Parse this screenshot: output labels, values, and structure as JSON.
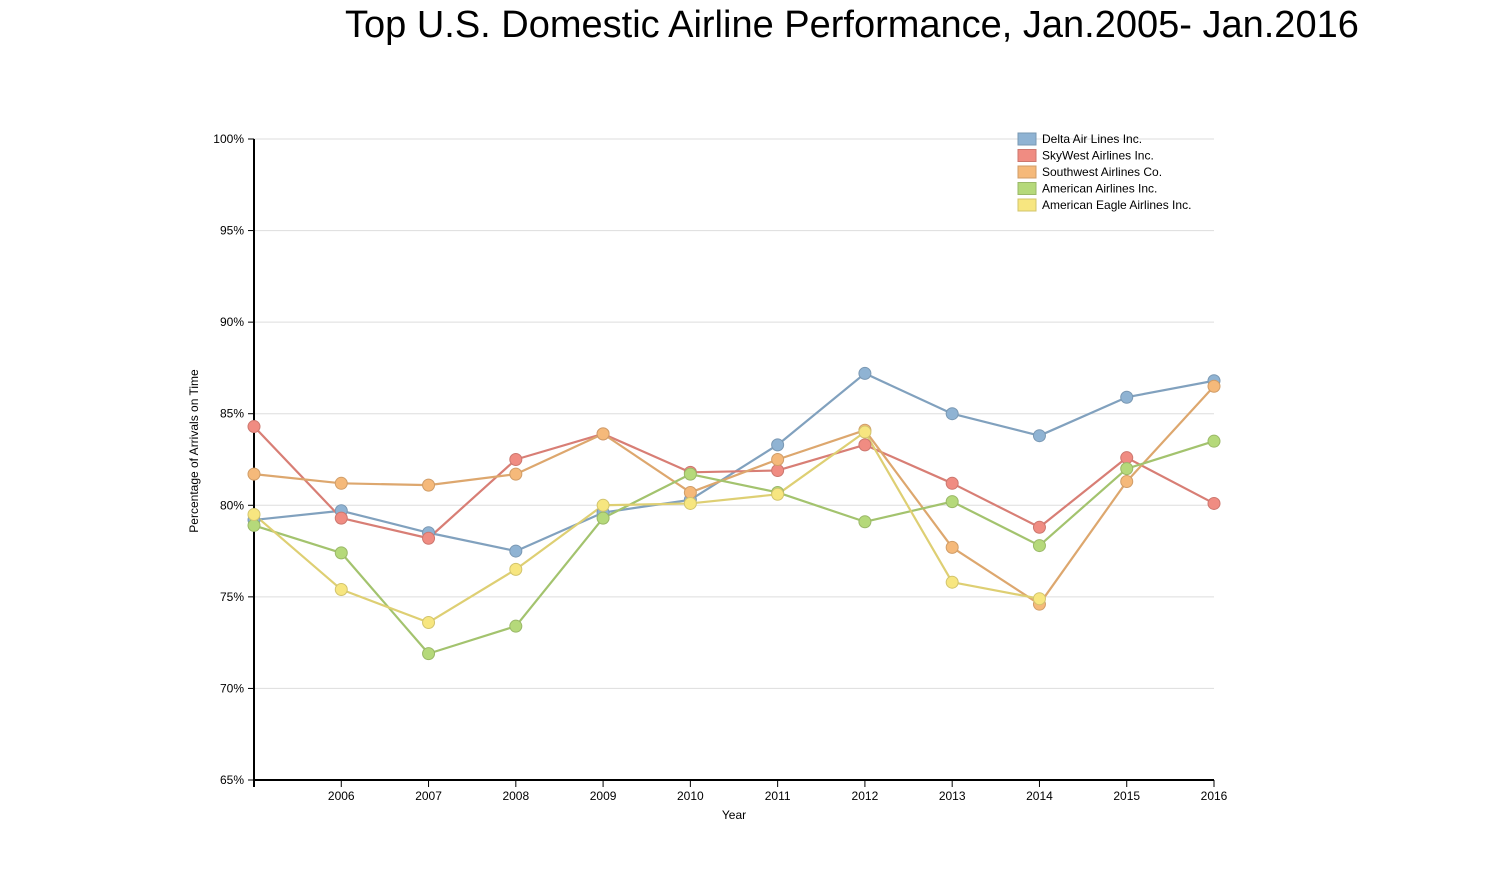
{
  "chart_data": {
    "type": "line",
    "title": "Top U.S. Domestic Airline Performance, Jan.2005- Jan.2016",
    "xlabel": "Year",
    "ylabel": "Percentage of Arrivals on Time",
    "x": [
      2005,
      2006,
      2007,
      2008,
      2009,
      2010,
      2011,
      2012,
      2013,
      2014,
      2015,
      2016
    ],
    "x_tick_labels": [
      "2006",
      "2007",
      "2008",
      "2009",
      "2010",
      "2011",
      "2012",
      "2013",
      "2014",
      "2015",
      "2016"
    ],
    "x_ticks": [
      2006,
      2007,
      2008,
      2009,
      2010,
      2011,
      2012,
      2013,
      2014,
      2015,
      2016
    ],
    "ylim": [
      0.65,
      1.0
    ],
    "y_ticks": [
      0.65,
      0.7,
      0.75,
      0.8,
      0.85,
      0.9,
      0.95,
      1.0
    ],
    "y_tick_labels": [
      "65%",
      "70%",
      "75%",
      "80%",
      "85%",
      "90%",
      "95%",
      "100%"
    ],
    "grid": "horizontal",
    "legend_position": "top-right",
    "series": [
      {
        "name": "Delta Air Lines Inc.",
        "color": "#8fb3d3",
        "values": [
          0.792,
          0.797,
          0.785,
          0.775,
          0.796,
          0.803,
          0.833,
          0.872,
          0.85,
          0.838,
          0.859,
          0.868
        ]
      },
      {
        "name": "SkyWest Airlines Inc.",
        "color": "#f08c82",
        "values": [
          0.843,
          0.793,
          0.782,
          0.825,
          0.839,
          0.818,
          0.819,
          0.833,
          0.812,
          0.788,
          0.826,
          0.801
        ]
      },
      {
        "name": "Southwest Airlines Co.",
        "color": "#f5b97a",
        "values": [
          0.817,
          0.812,
          0.811,
          0.817,
          0.839,
          0.807,
          0.825,
          0.841,
          0.777,
          0.746,
          0.813,
          0.865
        ]
      },
      {
        "name": "American Airlines Inc.",
        "color": "#b5d97a",
        "values": [
          0.789,
          0.774,
          0.719,
          0.734,
          0.793,
          0.817,
          0.807,
          0.791,
          0.802,
          0.778,
          0.82,
          0.835
        ]
      },
      {
        "name": "American Eagle Airlines Inc.",
        "color": "#f7e680",
        "values": [
          0.795,
          0.754,
          0.736,
          0.765,
          0.8,
          0.801,
          0.806,
          0.84,
          0.758,
          0.749,
          null,
          null
        ]
      }
    ]
  }
}
